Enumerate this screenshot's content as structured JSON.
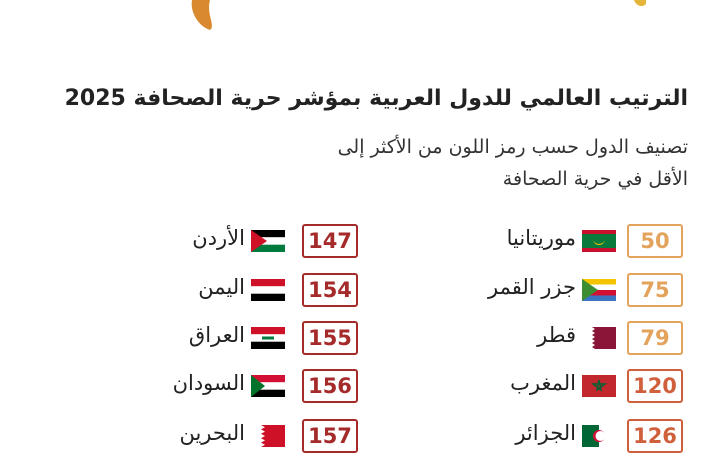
{
  "header": {
    "title": "الترتيب العالمي للدول العربية بمؤشر حرية الصحافة 2025",
    "subtitle": [
      "تصنيف الدول حسب رمز اللون من الأكثر إلى",
      "الأقل في حرية الصحافة"
    ]
  },
  "columns": [
    {
      "items": [
        {
          "country": "موريتانيا",
          "rank": 50,
          "color": "#e3a35c"
        },
        {
          "country": "جزر القمر",
          "rank": 75,
          "color": "#e3a35c"
        },
        {
          "country": "قطر",
          "rank": 79,
          "color": "#e3a35c"
        },
        {
          "country": "المغرب",
          "rank": 120,
          "color": "#d0603c"
        },
        {
          "country": "الجزائر",
          "rank": 126,
          "color": "#d0603c"
        }
      ]
    },
    {
      "items": [
        {
          "country": "الأردن",
          "rank": 147,
          "color": "#a52a2a"
        },
        {
          "country": "اليمن",
          "rank": 154,
          "color": "#a52a2a"
        },
        {
          "country": "العراق",
          "rank": 155,
          "color": "#a52a2a"
        },
        {
          "country": "السودان",
          "rank": 156,
          "color": "#a52a2a"
        },
        {
          "country": "البحرين",
          "rank": 157,
          "color": "#a52a2a"
        }
      ]
    }
  ]
}
